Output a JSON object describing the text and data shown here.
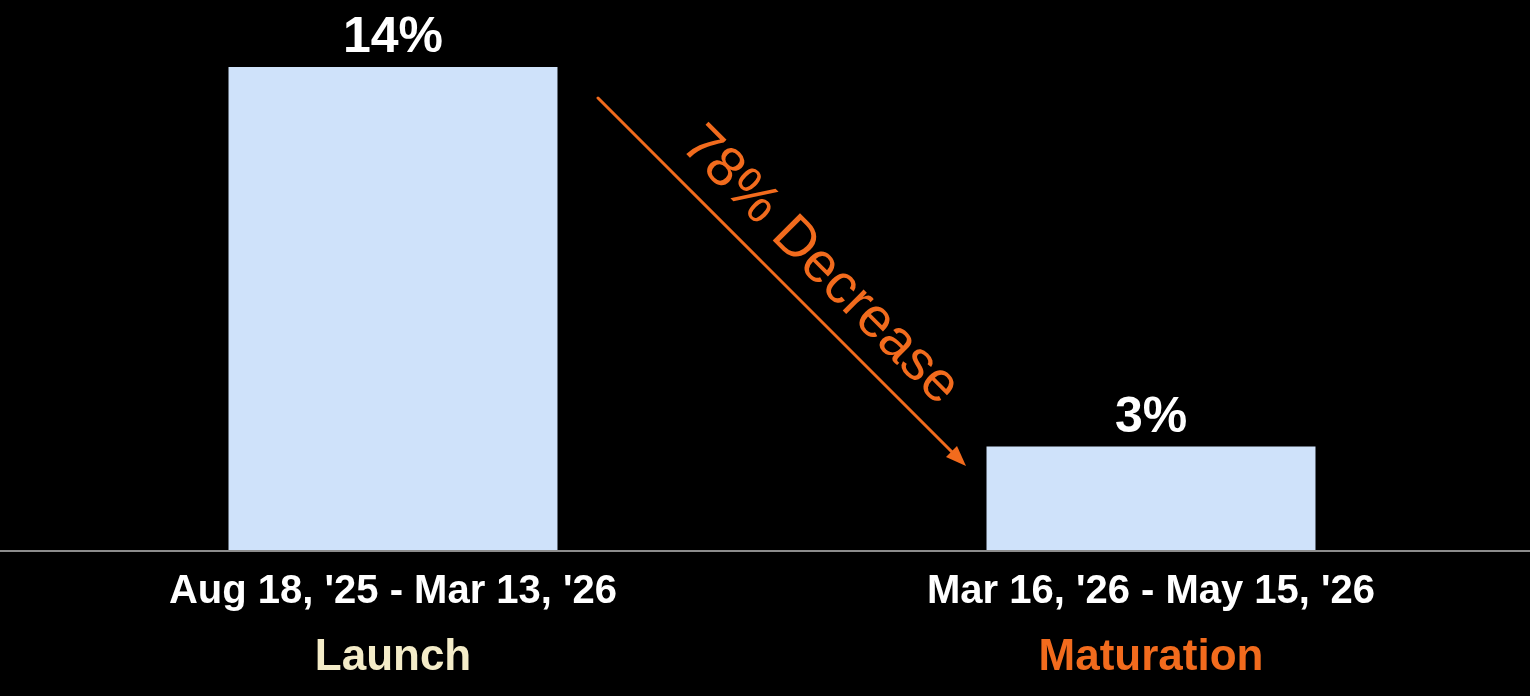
{
  "chart_data": {
    "type": "bar",
    "categories": [
      "Aug 18, '25 - Mar 13, '26",
      "Mar 16, '26 - May 15, '26"
    ],
    "values": [
      14,
      3
    ],
    "color": "#cfe2fa",
    "value_labels": [
      "14%",
      "3%"
    ],
    "annotations": [
      "78% Decrease",
      "Launch",
      "Maturation"
    ]
  }
}
